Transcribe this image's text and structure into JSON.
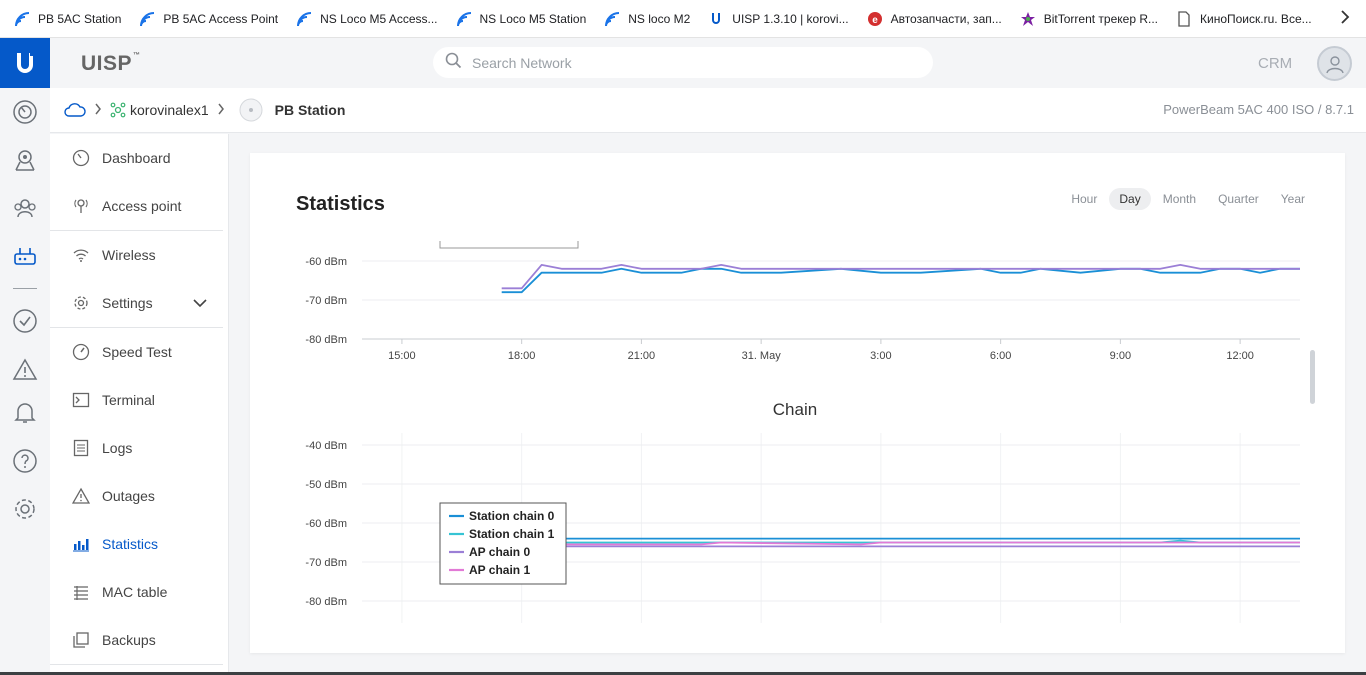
{
  "bookmarks": [
    {
      "label": "PB 5AC Station",
      "icon": "wifi-signal-icon",
      "color": "#1a73e8"
    },
    {
      "label": "PB 5AC Access Point",
      "icon": "wifi-signal-icon",
      "color": "#1a73e8"
    },
    {
      "label": "NS Loco M5 Access...",
      "icon": "wifi-signal-icon",
      "color": "#1a73e8"
    },
    {
      "label": "NS Loco M5 Station",
      "icon": "wifi-signal-icon",
      "color": "#1a73e8"
    },
    {
      "label": "NS loco M2",
      "icon": "wifi-signal-icon",
      "color": "#1a73e8"
    },
    {
      "label": "UISP 1.3.10 | korovi...",
      "icon": "uisp-icon",
      "color": "#0559c9"
    },
    {
      "label": "Автозапчасти, зап...",
      "icon": "autoparts-icon",
      "color": "#d32f2f"
    },
    {
      "label": "BitTorrent трекер R...",
      "icon": "bittorrent-icon",
      "color": "#7b1fa2"
    },
    {
      "label": "КиноПоиск.ru. Все...",
      "icon": "page-icon",
      "color": "#555555"
    }
  ],
  "header": {
    "brand": "UISP",
    "brand_tm": "™",
    "search_placeholder": "Search Network",
    "crm": "CRM"
  },
  "breadcrumb": {
    "site": "korovinalex1",
    "device": "PB Station",
    "model": "PowerBeam 5AC 400 ISO / 8.7.1"
  },
  "nav": [
    {
      "label": "Dashboard",
      "icon": "dashboard-icon"
    },
    {
      "label": "Access point",
      "icon": "access-point-icon"
    },
    {
      "label": "Wireless",
      "icon": "wifi-icon"
    },
    {
      "label": "Settings",
      "icon": "gear-icon"
    },
    {
      "label": "Speed Test",
      "icon": "speedometer-icon"
    },
    {
      "label": "Terminal",
      "icon": "terminal-icon"
    },
    {
      "label": "Logs",
      "icon": "logs-icon"
    },
    {
      "label": "Outages",
      "icon": "warning-icon"
    },
    {
      "label": "Statistics",
      "icon": "bar-chart-icon",
      "active": true
    },
    {
      "label": "MAC table",
      "icon": "table-icon"
    },
    {
      "label": "Backups",
      "icon": "backup-icon"
    }
  ],
  "statistics": {
    "title": "Statistics",
    "periods": [
      "Hour",
      "Day",
      "Month",
      "Quarter",
      "Year"
    ],
    "active_period": "Day"
  },
  "colors": {
    "accent": "#0559c9",
    "station_chain_0": "#1a8fd6",
    "station_chain_1": "#36c4d4",
    "ap_chain_0": "#9b7fd6",
    "ap_chain_1": "#e27ad6"
  },
  "chart_data": [
    {
      "type": "line",
      "title": "",
      "ylabel": "dBm",
      "y_ticks": [
        "-60 dBm",
        "-70 dBm",
        "-80 dBm"
      ],
      "ylim": [
        -80,
        -60
      ],
      "x_ticks": [
        "15:00",
        "18:00",
        "21:00",
        "31. May",
        "3:00",
        "6:00",
        "9:00",
        "12:00"
      ],
      "xlim": [
        "14:00",
        "13:30"
      ],
      "grid": true,
      "series": [
        {
          "color": "#1a8fd6",
          "x": [
            "17:30",
            "18:00",
            "18:30",
            "20:00",
            "20:30",
            "21:00",
            "22:00",
            "22:30",
            "23:00",
            "23:30",
            "00:30",
            "02:00",
            "03:00",
            "04:00",
            "05:30",
            "06:00",
            "06:30",
            "07:00",
            "08:00",
            "09:00",
            "09:30",
            "10:00",
            "11:00",
            "11:30",
            "12:00",
            "12:30",
            "13:00",
            "13:30"
          ],
          "values": [
            -68,
            -68,
            -63,
            -63,
            -62,
            -63,
            -63,
            -62,
            -62,
            -63,
            -63,
            -62,
            -63,
            -63,
            -62,
            -63,
            -63,
            -62,
            -63,
            -62,
            -62,
            -63,
            -63,
            -62,
            -62,
            -63,
            -62,
            -62
          ]
        },
        {
          "color": "#9b7fd6",
          "x": [
            "17:30",
            "18:00",
            "18:30",
            "19:00",
            "20:00",
            "20:30",
            "21:00",
            "22:00",
            "22:30",
            "23:00",
            "23:30",
            "01:00",
            "03:00",
            "05:30",
            "06:00",
            "07:00",
            "08:00",
            "09:00",
            "10:00",
            "10:30",
            "11:00",
            "12:00",
            "13:00",
            "13:30"
          ],
          "values": [
            -67,
            -67,
            -61,
            -62,
            -62,
            -61,
            -62,
            -62,
            -62,
            -61,
            -62,
            -62,
            -62,
            -62,
            -62,
            -62,
            -62,
            -62,
            -62,
            -61,
            -62,
            -62,
            -62,
            -62
          ]
        }
      ]
    },
    {
      "type": "line",
      "title": "Chain",
      "ylabel": "dBm",
      "y_ticks": [
        "-40 dBm",
        "-50 dBm",
        "-60 dBm",
        "-70 dBm",
        "-80 dBm"
      ],
      "ylim": [
        -80,
        -40
      ],
      "legend": "top-left",
      "grid": true,
      "series": [
        {
          "name": "Station chain 0",
          "color": "#1a8fd6",
          "x": [
            "17:30",
            "18:00",
            "18:30",
            "19:00",
            "13:30"
          ],
          "values": [
            -64,
            -63.5,
            -63,
            -64,
            -64
          ]
        },
        {
          "name": "Station chain 1",
          "color": "#36c4d4",
          "x": [
            "17:30",
            "18:00",
            "10:00",
            "10:30",
            "11:00",
            "13:30"
          ],
          "values": [
            -65,
            -65,
            -65,
            -64.5,
            -65,
            -65
          ]
        },
        {
          "name": "AP chain 0",
          "color": "#9b7fd6",
          "x": [
            "17:30",
            "13:30"
          ],
          "values": [
            -66,
            -66
          ]
        },
        {
          "name": "AP chain 1",
          "color": "#e27ad6",
          "x": [
            "17:30",
            "22:30",
            "23:00",
            "02:30",
            "03:00",
            "06:00",
            "09:00",
            "13:30"
          ],
          "values": [
            -65.5,
            -65.5,
            -65,
            -65.5,
            -65,
            -65,
            -65,
            -65
          ]
        }
      ]
    }
  ]
}
